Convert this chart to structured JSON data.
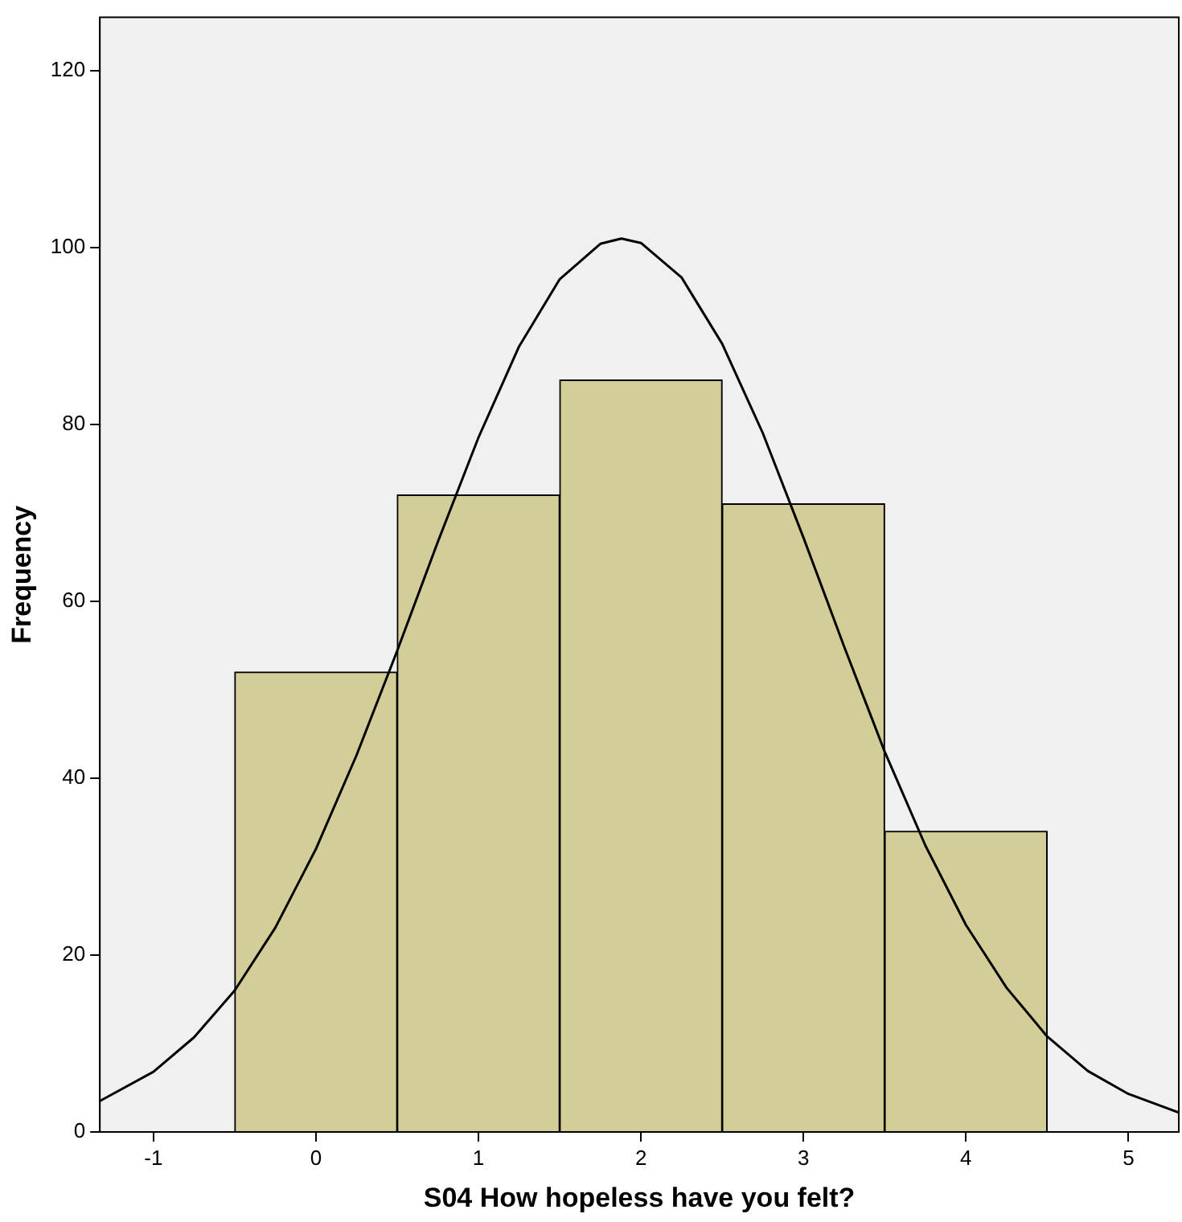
{
  "chart_data": {
    "type": "histogram",
    "xlabel": "S04 How hopeless have you felt?",
    "ylabel": "Frequency",
    "bins": [
      -0.5,
      0.5,
      1.5,
      2.5,
      3.5,
      4.5
    ],
    "values": [
      52,
      72,
      85,
      71,
      34
    ],
    "color": "#d3ce97",
    "series": [
      {
        "type": "line",
        "color": "#000000",
        "x": [
          -1.33,
          -1,
          -0.75,
          -0.5,
          -0.25,
          0,
          0.25,
          0.5,
          0.75,
          1,
          1.25,
          1.5,
          1.75,
          1.88,
          2,
          2.25,
          2.5,
          2.75,
          3,
          3.25,
          3.5,
          3.75,
          4,
          4.25,
          4.5,
          4.75,
          5,
          5.31
        ],
        "values": [
          3.5,
          6.8,
          10.7,
          16,
          23.1,
          32,
          42.6,
          54.4,
          66.7,
          78.5,
          88.8,
          96.4,
          100.4,
          101,
          100.5,
          96.6,
          89.1,
          79,
          67.2,
          54.9,
          43,
          32.4,
          23.4,
          16.3,
          10.8,
          6.9,
          4.3,
          2.2
        ]
      }
    ],
    "xlim": [
      -1.33,
      5.31
    ],
    "ylim": [
      0,
      126
    ],
    "xticks": [
      -1,
      0,
      1,
      2,
      3,
      4,
      5
    ],
    "yticks": [
      0,
      20,
      40,
      60,
      80,
      100,
      120
    ],
    "grid": false,
    "legend": false,
    "marker": "none",
    "line_style": "solid"
  }
}
